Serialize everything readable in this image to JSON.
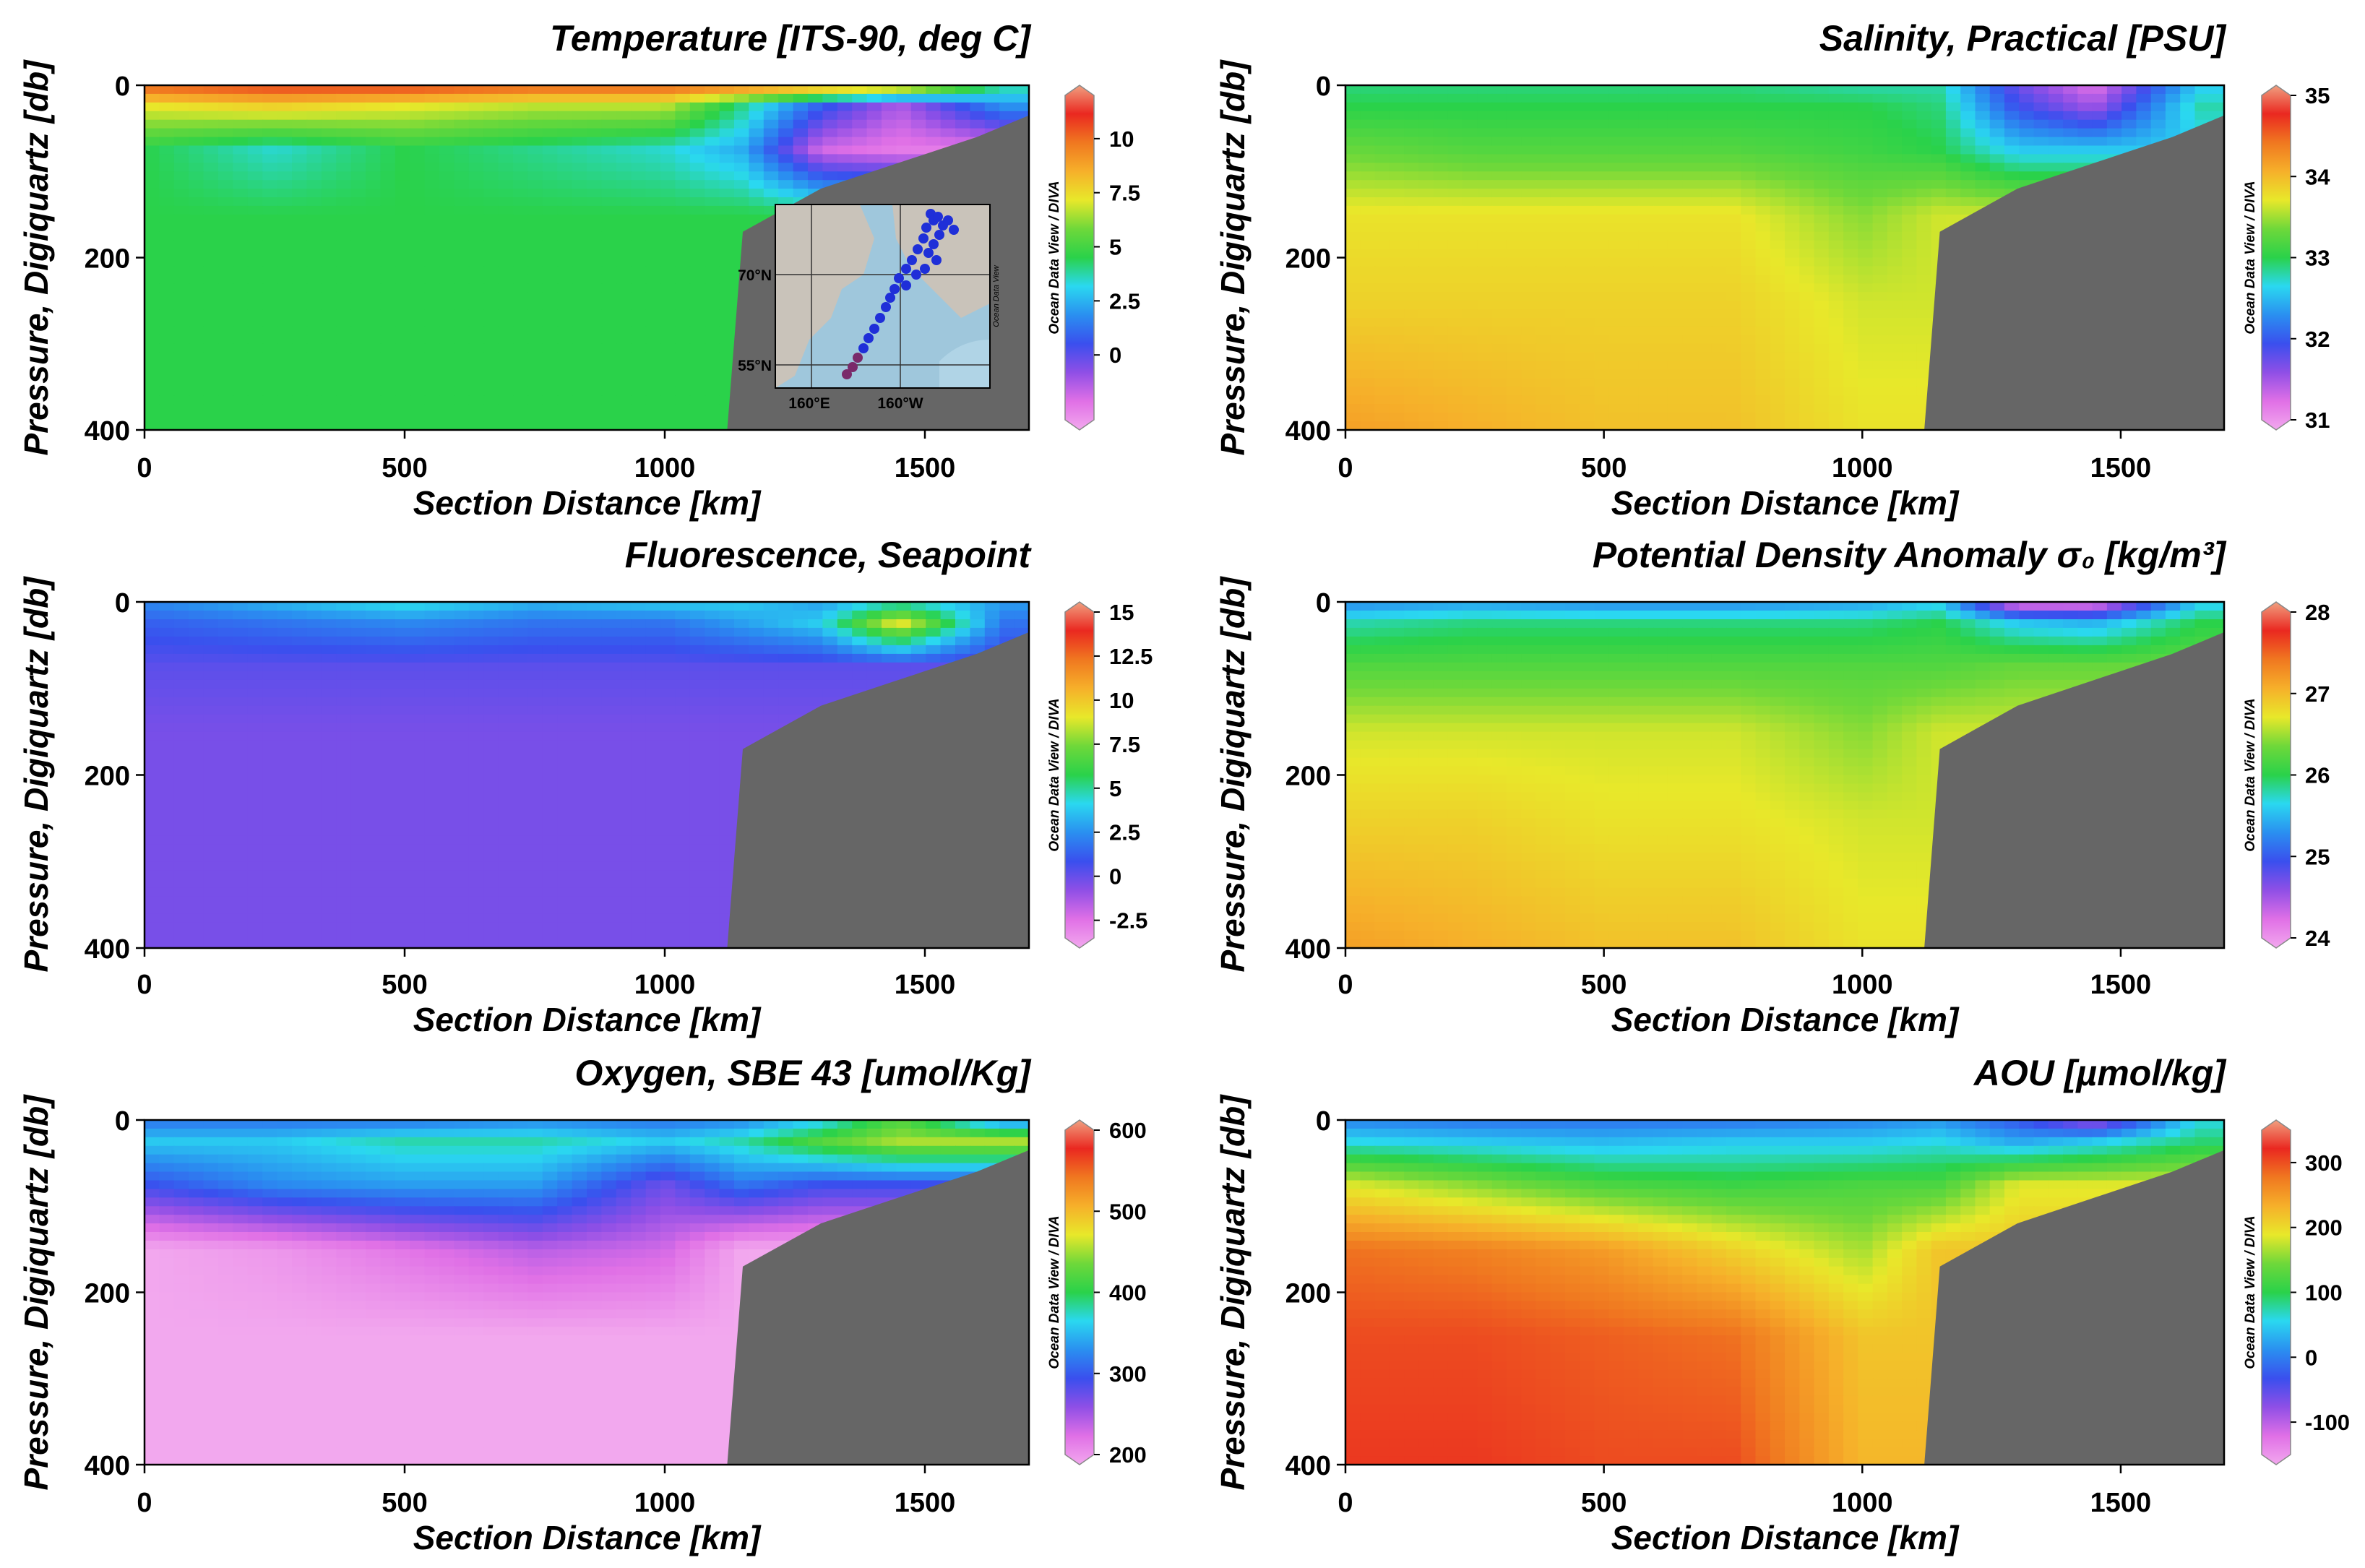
{
  "credit": "Ocean Data View / DIVA",
  "inset_map": {
    "lat_labels": [
      "70°N",
      "55°N"
    ],
    "lon_labels": [
      "160°E",
      "160°W"
    ],
    "credit": "Ocean Data View"
  },
  "colors": {
    "seafloor": "#666666",
    "cmap": [
      "#f2a8ee",
      "#e070e6",
      "#8f4fe6",
      "#3a4fee",
      "#2a8ff0",
      "#2ad8f0",
      "#2ad24a",
      "#6ed83a",
      "#e8e82a",
      "#f6b02a",
      "#f07820",
      "#ea2820",
      "#f0a080"
    ]
  },
  "panels": [
    {
      "title": "Temperature [ITS-90, deg C]",
      "xlabel": "Section Distance [km]",
      "ylabel": "Pressure, Digiquartz [db]",
      "colorbar_ticks": [
        "10",
        "7.5",
        "5",
        "2.5",
        "0"
      ]
    },
    {
      "title": "Salinity, Practical [PSU]",
      "xlabel": "Section Distance [km]",
      "ylabel": "Pressure, Digiquartz [db]",
      "colorbar_ticks": [
        "35",
        "34",
        "33",
        "32",
        "31"
      ]
    },
    {
      "title": "Fluorescence, Seapoint",
      "xlabel": "Section Distance [km]",
      "ylabel": "Pressure, Digiquartz [db]",
      "colorbar_ticks": [
        "15",
        "12.5",
        "10",
        "7.5",
        "5",
        "2.5",
        "0",
        "-2.5"
      ]
    },
    {
      "title": "Potential Density Anomaly σ₀ [kg/m³]",
      "xlabel": "Section Distance [km]",
      "ylabel": "Pressure, Digiquartz [db]",
      "colorbar_ticks": [
        "28",
        "27",
        "26",
        "25",
        "24"
      ]
    },
    {
      "title": "Oxygen, SBE 43 [umol/Kg]",
      "xlabel": "Section Distance [km]",
      "ylabel": "Pressure, Digiquartz [db]",
      "colorbar_ticks": [
        "600",
        "500",
        "400",
        "300",
        "200"
      ]
    },
    {
      "title": "AOU [µmol/kg]",
      "xlabel": "Section Distance [km]",
      "ylabel": "Pressure, Digiquartz [db]",
      "colorbar_ticks": [
        "300",
        "200",
        "100",
        "0",
        "-100"
      ]
    }
  ],
  "chart_data": [
    {
      "type": "heatmap",
      "title": "Temperature [ITS-90, deg C]",
      "xlabel": "Section Distance [km]",
      "ylabel": "Pressure, Digiquartz [db]",
      "xlim": [
        0,
        1700
      ],
      "ylim": [
        400,
        0
      ],
      "x_ticks": [
        0,
        500,
        1000,
        1500
      ],
      "y_ticks": [
        0,
        200,
        400
      ],
      "colorbar": {
        "range": [
          -3,
          12
        ],
        "ticks": [
          0,
          2.5,
          5,
          7.5,
          10
        ]
      },
      "x": [
        0,
        250,
        500,
        750,
        1000,
        1150,
        1300,
        1450,
        1650
      ],
      "depth": [
        0,
        25,
        75,
        150,
        250,
        400
      ],
      "values": [
        [
          10,
          10.5,
          10.5,
          10,
          10,
          9.5,
          9,
          8.5,
          4
        ],
        [
          7,
          7.5,
          7,
          6.5,
          6.5,
          4,
          1,
          -1,
          2
        ],
        [
          4.5,
          3.5,
          4.5,
          4,
          3.5,
          2.5,
          -1.5,
          -2,
          null
        ],
        [
          4.5,
          4.5,
          4.5,
          4.5,
          4.5,
          4.5,
          null,
          null,
          null
        ],
        [
          4.5,
          4.5,
          4.5,
          4.5,
          4.5,
          null,
          null,
          null,
          null
        ],
        [
          4.5,
          4.5,
          4.5,
          4.5,
          4.5,
          null,
          null,
          null,
          null
        ]
      ],
      "seafloor_depth": [
        [
          1120,
          400
        ],
        [
          1150,
          170
        ],
        [
          1300,
          120
        ],
        [
          1450,
          90
        ],
        [
          1600,
          60
        ],
        [
          1700,
          35
        ]
      ]
    },
    {
      "type": "heatmap",
      "title": "Salinity, Practical [PSU]",
      "xlabel": "Section Distance [km]",
      "ylabel": "Pressure, Digiquartz [db]",
      "xlim": [
        0,
        1700
      ],
      "ylim": [
        400,
        0
      ],
      "x_ticks": [
        0,
        500,
        1000,
        1500
      ],
      "y_ticks": [
        0,
        200,
        400
      ],
      "colorbar": {
        "range": [
          31,
          35
        ],
        "ticks": [
          31,
          32,
          33,
          34,
          35
        ]
      },
      "x": [
        0,
        250,
        500,
        750,
        1000,
        1150,
        1300,
        1450,
        1650
      ],
      "depth": [
        0,
        25,
        75,
        150,
        250,
        400
      ],
      "values": [
        [
          32.9,
          32.9,
          32.9,
          32.9,
          32.8,
          32.8,
          31.8,
          31.3,
          32.6
        ],
        [
          33.0,
          33.0,
          33.0,
          33.0,
          33.0,
          32.9,
          32.0,
          31.6,
          32.8
        ],
        [
          33.3,
          33.2,
          33.2,
          33.2,
          33.1,
          33.0,
          32.6,
          null,
          null
        ],
        [
          33.7,
          33.7,
          33.7,
          33.7,
          33.4,
          33.6,
          null,
          null,
          null
        ],
        [
          33.8,
          33.8,
          33.8,
          33.8,
          33.6,
          null,
          null,
          null,
          null
        ],
        [
          34.1,
          34.0,
          33.9,
          33.9,
          33.7,
          null,
          null,
          null,
          null
        ]
      ],
      "seafloor_depth": [
        [
          1120,
          400
        ],
        [
          1150,
          170
        ],
        [
          1300,
          120
        ],
        [
          1450,
          90
        ],
        [
          1600,
          60
        ],
        [
          1700,
          35
        ]
      ]
    },
    {
      "type": "heatmap",
      "title": "Fluorescence, Seapoint",
      "xlabel": "Section Distance [km]",
      "ylabel": "Pressure, Digiquartz [db]",
      "xlim": [
        0,
        1700
      ],
      "ylim": [
        400,
        0
      ],
      "x_ticks": [
        0,
        500,
        1000,
        1500
      ],
      "y_ticks": [
        0,
        200,
        400
      ],
      "colorbar": {
        "range": [
          -3.5,
          15
        ],
        "ticks": [
          -2.5,
          0,
          2.5,
          5,
          7.5,
          10,
          12.5,
          15
        ]
      },
      "x": [
        0,
        250,
        500,
        750,
        1000,
        1150,
        1300,
        1450,
        1650
      ],
      "depth": [
        0,
        25,
        75,
        150,
        250,
        400
      ],
      "values": [
        [
          2.5,
          3.5,
          4.5,
          3.5,
          4,
          4,
          3,
          4.5,
          3
        ],
        [
          1.5,
          2,
          2.5,
          2,
          2,
          3,
          4,
          9,
          2
        ],
        [
          0.5,
          0.5,
          0.5,
          0.5,
          0.5,
          0.5,
          null,
          null,
          null
        ],
        [
          0,
          0,
          0,
          0,
          0,
          null,
          null,
          null,
          null
        ],
        [
          0,
          0,
          0,
          0,
          0,
          null,
          null,
          null,
          null
        ],
        [
          0,
          0,
          0,
          0,
          0,
          null,
          null,
          null,
          null
        ]
      ],
      "seafloor_depth": [
        [
          1120,
          400
        ],
        [
          1150,
          170
        ],
        [
          1300,
          120
        ],
        [
          1450,
          90
        ],
        [
          1600,
          60
        ],
        [
          1700,
          35
        ]
      ]
    },
    {
      "type": "heatmap",
      "title": "Potential Density Anomaly σ₀ [kg/m³]",
      "xlabel": "Section Distance [km]",
      "ylabel": "Pressure, Digiquartz [db]",
      "xlim": [
        0,
        1700
      ],
      "ylim": [
        400,
        0
      ],
      "x_ticks": [
        0,
        500,
        1000,
        1500
      ],
      "y_ticks": [
        0,
        200,
        400
      ],
      "colorbar": {
        "range": [
          24,
          28
        ],
        "ticks": [
          24,
          25,
          26,
          27,
          28
        ]
      },
      "x": [
        0,
        250,
        500,
        750,
        1000,
        1150,
        1300,
        1450,
        1650
      ],
      "depth": [
        0,
        25,
        75,
        150,
        250,
        400
      ],
      "values": [
        [
          25.3,
          25.4,
          25.3,
          25.3,
          25.4,
          25.6,
          24.2,
          24.2,
          25.6
        ],
        [
          25.8,
          25.9,
          25.9,
          25.9,
          25.9,
          26.0,
          25.6,
          25.5,
          26.0
        ],
        [
          26.2,
          26.2,
          26.2,
          26.2,
          26.2,
          26.2,
          26.3,
          null,
          null
        ],
        [
          26.6,
          26.6,
          26.6,
          26.6,
          26.4,
          26.6,
          null,
          null,
          null
        ],
        [
          26.8,
          26.8,
          26.7,
          26.7,
          26.6,
          null,
          null,
          null,
          null
        ],
        [
          27.1,
          27.0,
          26.9,
          26.9,
          26.7,
          null,
          null,
          null,
          null
        ]
      ],
      "seafloor_depth": [
        [
          1120,
          400
        ],
        [
          1150,
          170
        ],
        [
          1300,
          120
        ],
        [
          1450,
          90
        ],
        [
          1600,
          60
        ],
        [
          1700,
          35
        ]
      ]
    },
    {
      "type": "heatmap",
      "title": "Oxygen, SBE 43 [umol/Kg]",
      "xlabel": "Section Distance [km]",
      "ylabel": "Pressure, Digiquartz [db]",
      "xlim": [
        0,
        1700
      ],
      "ylim": [
        400,
        0
      ],
      "x_ticks": [
        0,
        500,
        1000,
        1500
      ],
      "y_ticks": [
        0,
        200,
        400
      ],
      "colorbar": {
        "range": [
          200,
          600
        ],
        "ticks": [
          200,
          300,
          400,
          500,
          600
        ]
      },
      "x": [
        0,
        250,
        500,
        750,
        1000,
        1150,
        1300,
        1450,
        1650
      ],
      "depth": [
        0,
        25,
        75,
        150,
        250,
        400
      ],
      "values": [
        [
          320,
          320,
          320,
          330,
          320,
          330,
          360,
          420,
          330
        ],
        [
          360,
          360,
          380,
          380,
          360,
          380,
          420,
          450,
          null
        ],
        [
          300,
          330,
          340,
          340,
          280,
          320,
          300,
          null,
          null
        ],
        [
          200,
          210,
          230,
          250,
          240,
          200,
          null,
          null,
          null
        ],
        [
          200,
          200,
          200,
          200,
          200,
          null,
          null,
          null,
          null
        ],
        [
          200,
          200,
          200,
          200,
          200,
          null,
          null,
          null,
          null
        ]
      ],
      "seafloor_depth": [
        [
          1120,
          400
        ],
        [
          1150,
          170
        ],
        [
          1300,
          120
        ],
        [
          1450,
          90
        ],
        [
          1600,
          60
        ],
        [
          1700,
          35
        ]
      ]
    },
    {
      "type": "heatmap",
      "title": "AOU [µmol/kg]",
      "xlabel": "Section Distance [km]",
      "ylabel": "Pressure, Digiquartz [db]",
      "xlim": [
        0,
        1700
      ],
      "ylim": [
        400,
        0
      ],
      "x_ticks": [
        0,
        500,
        1000,
        1500
      ],
      "y_ticks": [
        0,
        200,
        400
      ],
      "colorbar": {
        "range": [
          -150,
          350
        ],
        "ticks": [
          -100,
          0,
          100,
          200,
          300
        ]
      },
      "x": [
        0,
        250,
        500,
        750,
        1000,
        1150,
        1300,
        1450,
        1650
      ],
      "depth": [
        0,
        25,
        75,
        150,
        250,
        400
      ],
      "values": [
        [
          10,
          0,
          0,
          0,
          10,
          20,
          -20,
          -80,
          60
        ],
        [
          60,
          50,
          40,
          50,
          50,
          60,
          30,
          50,
          90
        ],
        [
          180,
          150,
          120,
          110,
          120,
          120,
          180,
          null,
          null
        ],
        [
          270,
          260,
          240,
          200,
          160,
          210,
          null,
          null,
          null
        ],
        [
          290,
          290,
          280,
          270,
          210,
          null,
          null,
          null,
          null
        ],
        [
          300,
          300,
          290,
          290,
          220,
          null,
          null,
          null,
          null
        ]
      ],
      "seafloor_depth": [
        [
          1120,
          400
        ],
        [
          1150,
          170
        ],
        [
          1300,
          120
        ],
        [
          1450,
          90
        ],
        [
          1600,
          60
        ],
        [
          1700,
          35
        ]
      ]
    }
  ]
}
